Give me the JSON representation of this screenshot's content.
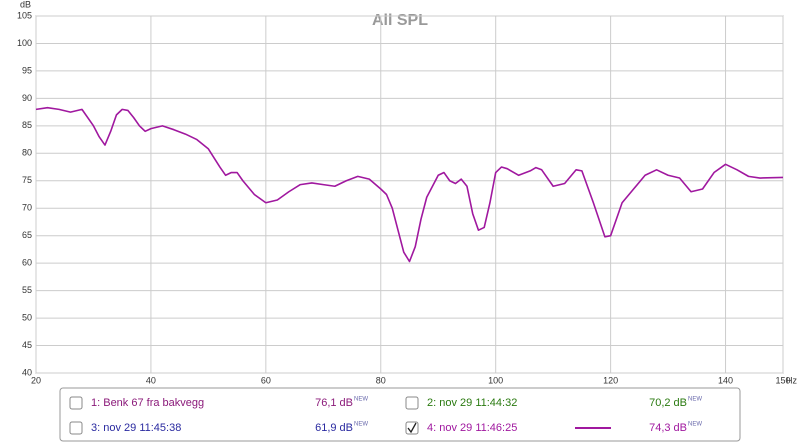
{
  "chart_data": {
    "type": "line",
    "title": "All SPL",
    "y_unit": "dB",
    "x_unit": "Hz",
    "xlim": [
      20,
      150
    ],
    "ylim": [
      40,
      105
    ],
    "xticks": [
      20,
      40,
      60,
      80,
      100,
      120,
      140,
      150
    ],
    "yticks": [
      40,
      45,
      50,
      55,
      60,
      65,
      70,
      75,
      80,
      85,
      90,
      95,
      100,
      105
    ],
    "grid": true,
    "x": [
      20,
      22,
      24,
      26,
      28,
      30,
      31,
      32,
      33,
      34,
      35,
      36,
      37,
      38,
      39,
      40,
      42,
      44,
      46,
      48,
      50,
      52,
      53,
      54,
      55,
      56,
      58,
      60,
      62,
      64,
      66,
      68,
      70,
      72,
      74,
      76,
      78,
      80,
      81,
      82,
      83,
      84,
      85,
      86,
      87,
      88,
      90,
      91,
      92,
      93,
      94,
      95,
      96,
      97,
      98,
      99,
      100,
      101,
      102,
      104,
      106,
      107,
      108,
      110,
      112,
      114,
      115,
      117,
      119,
      120,
      121,
      122,
      124,
      126,
      128,
      130,
      132,
      134,
      136,
      138,
      140,
      142,
      144,
      146,
      150
    ],
    "series": [
      {
        "name": "4: nov 29 11:46:25",
        "color": "#a0189f",
        "checked": true,
        "level": "74,3 dB",
        "badge": "NEW",
        "values": [
          88,
          88.3,
          88,
          87.5,
          88,
          85,
          83,
          81.5,
          84,
          87,
          88,
          87.8,
          86.5,
          85,
          84,
          84.5,
          85,
          84.3,
          83.5,
          82.5,
          80.8,
          77.5,
          76,
          76.5,
          76.5,
          75,
          72.5,
          71,
          71.5,
          73,
          74.3,
          74.6,
          74.3,
          74,
          75,
          75.8,
          75.3,
          73.5,
          72.5,
          70,
          66,
          62,
          60.3,
          63,
          68,
          72,
          76,
          76.5,
          75,
          74.5,
          75.3,
          74,
          69,
          66,
          66.5,
          71,
          76.5,
          77.5,
          77.2,
          76,
          76.8,
          77.4,
          77,
          74,
          74.5,
          77,
          76.8,
          71,
          64.8,
          65,
          68,
          71,
          73.5,
          76,
          77,
          76,
          75.5,
          73,
          73.5,
          76.5,
          78,
          77,
          75.8,
          75.5,
          75.6
        ]
      }
    ],
    "other_measurements": [
      {
        "name": "1: Benk 67 fra bakvegg",
        "color": "#8b1a7a",
        "checked": false,
        "level": "76,1 dB",
        "badge": "NEW"
      },
      {
        "name": "2: nov 29 11:44:32",
        "color": "#2a7a10",
        "checked": false,
        "level": "70,2 dB",
        "badge": "NEW"
      },
      {
        "name": "3: nov 29 11:45:38",
        "color": "#2a2aa0",
        "checked": false,
        "level": "61,9 dB",
        "badge": "NEW"
      }
    ]
  }
}
